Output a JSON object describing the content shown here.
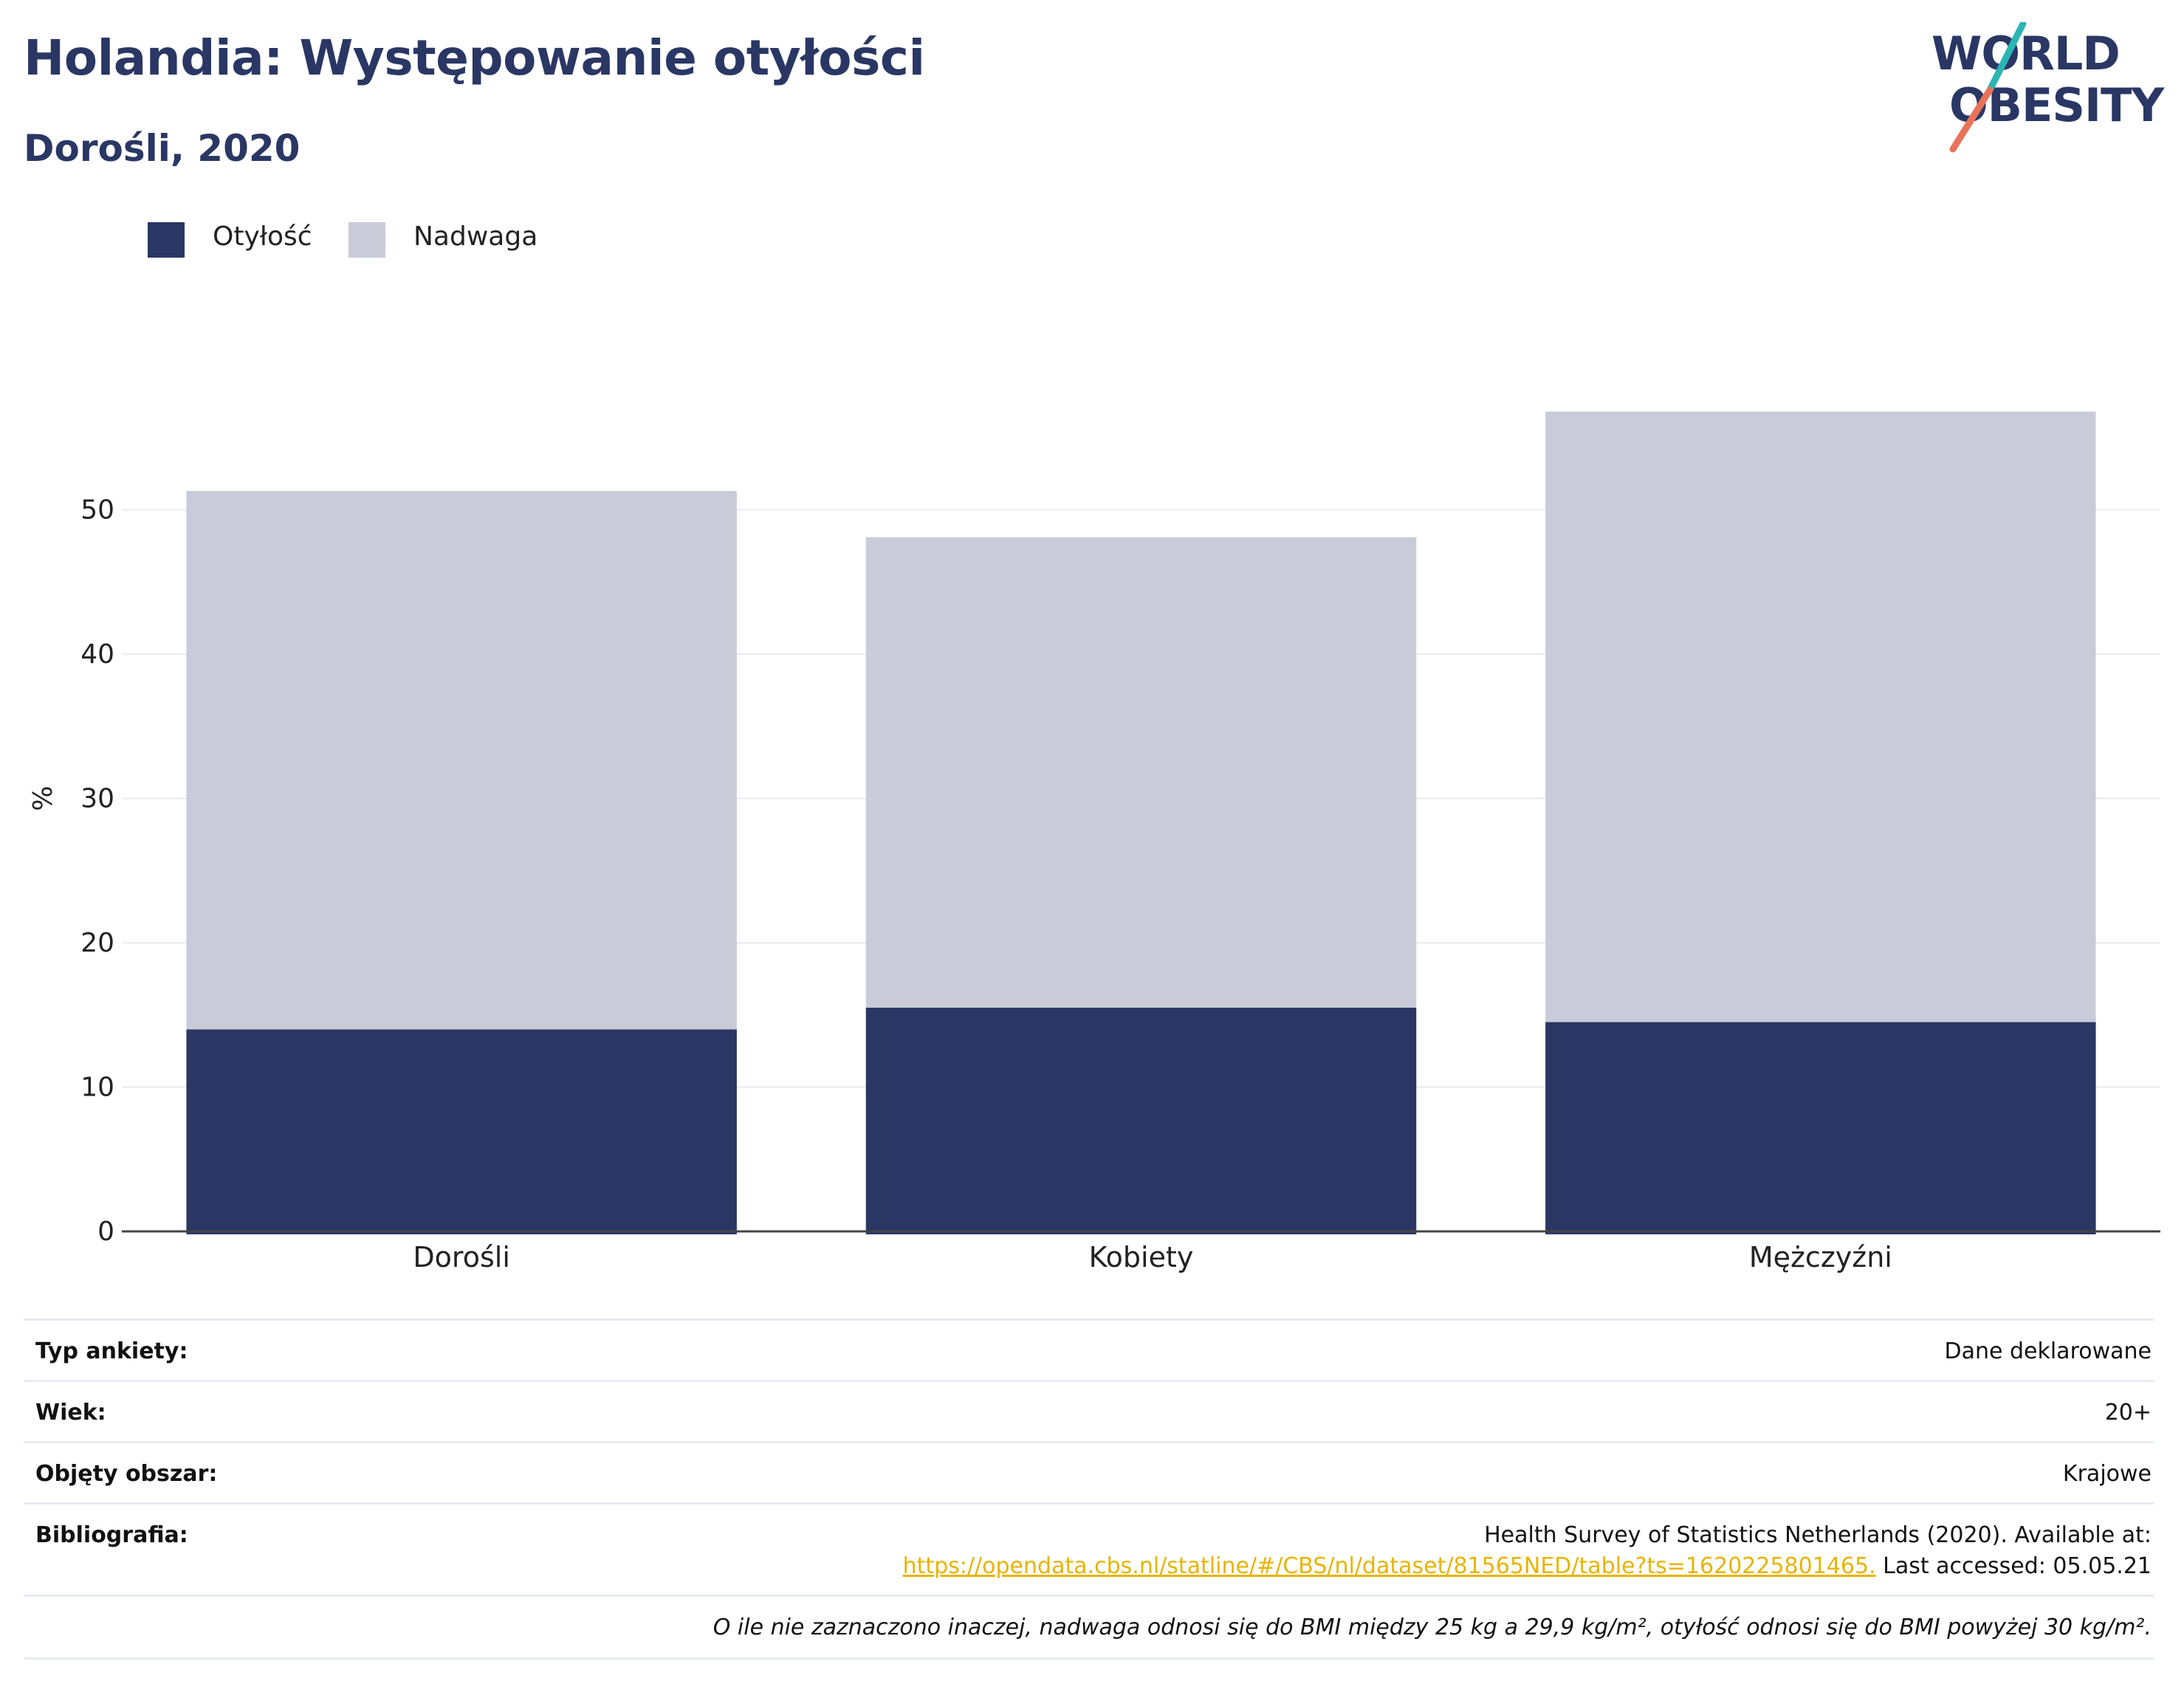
{
  "title": "Holandia: Występowanie otyłości",
  "subtitle": "Dorośli, 2020",
  "logo": {
    "line1": "WORLD",
    "line2": "OBESITY",
    "colors": {
      "text": "#2a3764",
      "slash_top": "#2bb5b3",
      "slash_bottom": "#e8735a"
    }
  },
  "legend": [
    {
      "label": "Otyłość",
      "color": "#2a3764"
    },
    {
      "label": "Nadwaga",
      "color": "#c9ccd8"
    }
  ],
  "chart_data": {
    "type": "bar",
    "stacked": true,
    "categories": [
      "Dorośli",
      "Kobiety",
      "Mężczyźni"
    ],
    "series": [
      {
        "name": "Otyłość",
        "values": [
          14.0,
          15.5,
          14.5
        ],
        "color": "#2a3764"
      },
      {
        "name": "Nadwaga",
        "values": [
          37.3,
          32.6,
          42.3
        ],
        "color": "#c9ccd8"
      }
    ],
    "ylabel": "%",
    "yticks": [
      0,
      10,
      20,
      30,
      40,
      50
    ],
    "ylim": [
      0,
      60
    ],
    "grid": true,
    "legend_position": "top-left"
  },
  "info": {
    "survey_type": {
      "label": "Typ ankiety:",
      "value": "Dane deklarowane"
    },
    "age": {
      "label": "Wiek:",
      "value": "20+"
    },
    "area": {
      "label": "Objęty obszar:",
      "value": "Krajowe"
    },
    "bibliography": {
      "label": "Bibliografia:",
      "line1": "Health Survey of Statistics Netherlands (2020). Available at:",
      "link": "https://opendata.cbs.nl/statline/#/CBS/nl/dataset/81565NED/table?ts=1620225801465.",
      "accessed": " Last accessed: 05.05.21"
    },
    "note": "O ile nie zaznaczono inaczej, nadwaga odnosi się do BMI między 25 kg a 29,9 kg/m², otyłość odnosi się do BMI powyżej 30 kg/m²."
  }
}
